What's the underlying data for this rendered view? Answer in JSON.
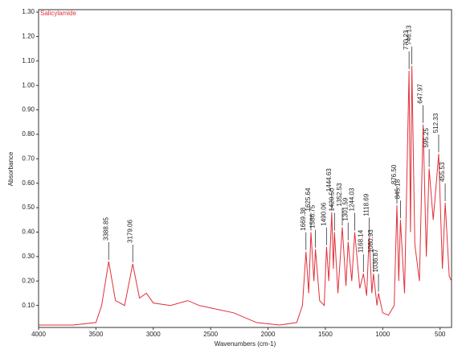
{
  "chart_data": {
    "type": "line",
    "title": "Salicylamide",
    "xlabel": "Wavenumbers (cm-1)",
    "ylabel": "Absorbance",
    "xlim": [
      4000,
      400
    ],
    "ylim": [
      0.01,
      1.31
    ],
    "xticks": [
      4000,
      3500,
      3000,
      2500,
      2000,
      1500,
      1000,
      500
    ],
    "yticks": [
      {
        "value": 0.1,
        "label": "0.10"
      },
      {
        "value": 0.2,
        "label": "0.20"
      },
      {
        "value": 0.3,
        "label": "0.30"
      },
      {
        "value": 0.4,
        "label": "0.40"
      },
      {
        "value": 0.5,
        "label": "0.50"
      },
      {
        "value": 0.6,
        "label": "0.60"
      },
      {
        "value": 0.7,
        "label": "0.70"
      },
      {
        "value": 0.8,
        "label": "0.80"
      },
      {
        "value": 0.9,
        "label": "0.90"
      },
      {
        "value": 1.0,
        "label": "1.00"
      },
      {
        "value": 1.1,
        "label": "1.10"
      },
      {
        "value": 1.2,
        "label": "1.20"
      },
      {
        "value": 1.3,
        "label": "1.30"
      }
    ],
    "x": [
      4000,
      3700,
      3500,
      3450,
      3388.85,
      3330,
      3250,
      3179.06,
      3120,
      3060,
      3000,
      2850,
      2700,
      2600,
      2500,
      2300,
      2100,
      1900,
      1750,
      1700,
      1669.38,
      1645,
      1625.64,
      1600,
      1586.75,
      1550,
      1510,
      1490.06,
      1470,
      1444.63,
      1430,
      1420.5,
      1390,
      1352.53,
      1320,
      1301.59,
      1270,
      1244.03,
      1200,
      1168.14,
      1140,
      1118.69,
      1095,
      1080.93,
      1050,
      1036.87,
      1000,
      950,
      900,
      876.5,
      860,
      845.18,
      810,
      770.23,
      758,
      746.13,
      720,
      680,
      647.97,
      620,
      595.25,
      560,
      512.33,
      480,
      455.53,
      420,
      400
    ],
    "series": [
      {
        "name": "Salicylamide",
        "color": "#e0303a",
        "values": [
          0.02,
          0.02,
          0.03,
          0.1,
          0.28,
          0.12,
          0.1,
          0.27,
          0.13,
          0.15,
          0.11,
          0.1,
          0.12,
          0.1,
          0.09,
          0.07,
          0.03,
          0.02,
          0.03,
          0.1,
          0.32,
          0.15,
          0.4,
          0.2,
          0.33,
          0.12,
          0.1,
          0.34,
          0.2,
          0.48,
          0.25,
          0.4,
          0.15,
          0.42,
          0.18,
          0.36,
          0.2,
          0.4,
          0.17,
          0.23,
          0.14,
          0.38,
          0.15,
          0.23,
          0.1,
          0.15,
          0.07,
          0.06,
          0.1,
          0.51,
          0.2,
          0.45,
          0.15,
          1.06,
          0.4,
          1.08,
          0.35,
          0.2,
          0.84,
          0.3,
          0.66,
          0.45,
          0.72,
          0.25,
          0.52,
          0.22,
          0.2
        ]
      }
    ],
    "annotations": [
      {
        "x": 3388.85,
        "y": 0.28,
        "label": "3388.85"
      },
      {
        "x": 3179.06,
        "y": 0.27,
        "label": "3179.06"
      },
      {
        "x": 1669.38,
        "y": 0.32,
        "label": "1669.38"
      },
      {
        "x": 1625.64,
        "y": 0.4,
        "label": "1625.64"
      },
      {
        "x": 1586.75,
        "y": 0.33,
        "label": "1586.75"
      },
      {
        "x": 1490.06,
        "y": 0.34,
        "label": "1490.06"
      },
      {
        "x": 1444.63,
        "y": 0.48,
        "label": "1444.63"
      },
      {
        "x": 1420.5,
        "y": 0.4,
        "label": "1420.50"
      },
      {
        "x": 1352.53,
        "y": 0.42,
        "label": "1352.53"
      },
      {
        "x": 1301.59,
        "y": 0.36,
        "label": "1301.59"
      },
      {
        "x": 1244.03,
        "y": 0.4,
        "label": "1244.03"
      },
      {
        "x": 1168.14,
        "y": 0.23,
        "label": "1168.14"
      },
      {
        "x": 1118.69,
        "y": 0.38,
        "label": "1118.69"
      },
      {
        "x": 1080.93,
        "y": 0.23,
        "label": "1080.93"
      },
      {
        "x": 1036.87,
        "y": 0.15,
        "label": "1036.87"
      },
      {
        "x": 876.5,
        "y": 0.51,
        "label": "876.50"
      },
      {
        "x": 845.18,
        "y": 0.45,
        "label": "845.18"
      },
      {
        "x": 770.23,
        "y": 1.06,
        "label": "770.23"
      },
      {
        "x": 746.13,
        "y": 1.08,
        "label": "746.13"
      },
      {
        "x": 647.97,
        "y": 0.84,
        "label": "647.97"
      },
      {
        "x": 595.25,
        "y": 0.66,
        "label": "595.25"
      },
      {
        "x": 512.33,
        "y": 0.72,
        "label": "512.33"
      },
      {
        "x": 455.53,
        "y": 0.52,
        "label": "455.53"
      }
    ]
  }
}
